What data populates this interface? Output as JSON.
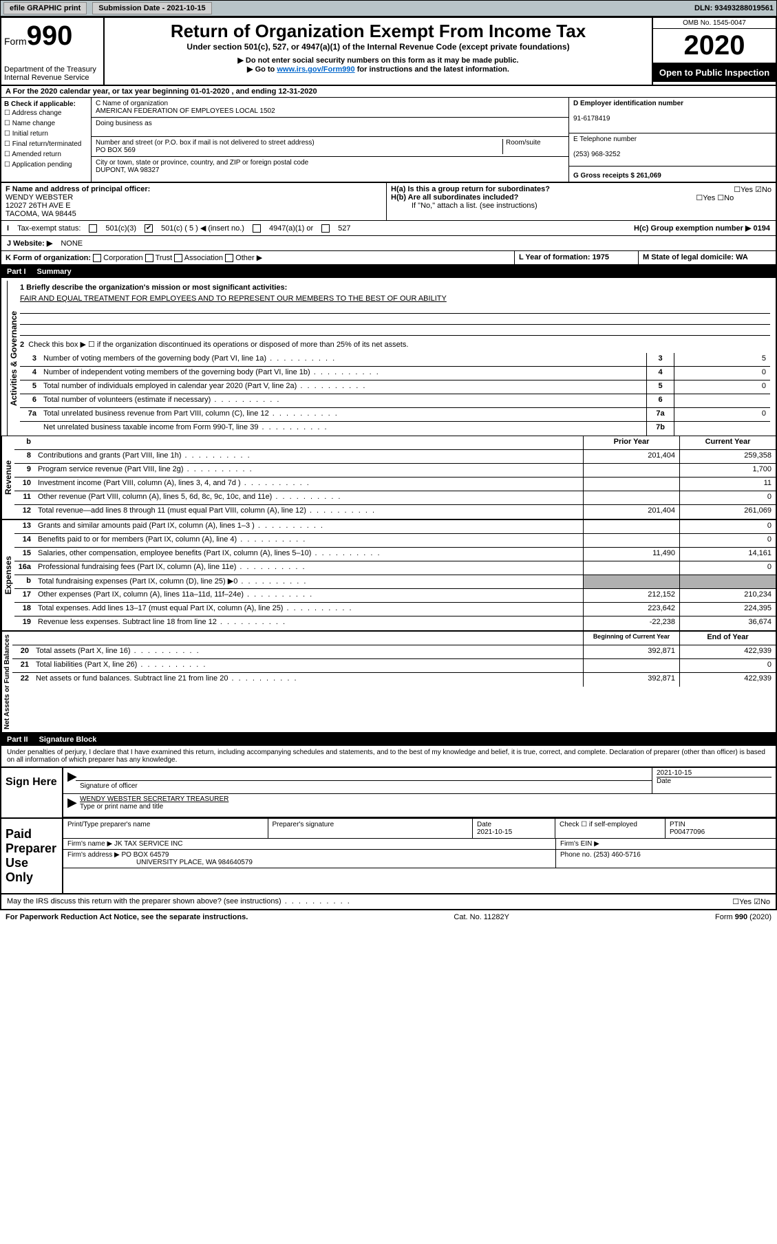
{
  "topbar": {
    "efile": "efile GRAPHIC print",
    "sub_label": "Submission Date - 2021-10-15",
    "dln": "DLN: 93493288019561"
  },
  "header": {
    "form_label": "Form",
    "form_num": "990",
    "dept": "Department of the Treasury\nInternal Revenue Service",
    "title": "Return of Organization Exempt From Income Tax",
    "subtitle": "Under section 501(c), 527, or 4947(a)(1) of the Internal Revenue Code (except private foundations)",
    "instr1": "▶ Do not enter social security numbers on this form as it may be made public.",
    "instr2_pre": "▶ Go to ",
    "instr2_link": "www.irs.gov/Form990",
    "instr2_post": " for instructions and the latest information.",
    "omb": "OMB No. 1545-0047",
    "year": "2020",
    "public": "Open to Public Inspection"
  },
  "section_a": "A For the 2020 calendar year, or tax year beginning 01-01-2020    , and ending 12-31-2020",
  "col_b": {
    "label": "B Check if applicable:",
    "opts": [
      "Address change",
      "Name change",
      "Initial return",
      "Final return/terminated",
      "Amended return",
      "Application pending"
    ]
  },
  "col_c": {
    "name_label": "C Name of organization",
    "name": "AMERICAN FEDERATION OF EMPLOYEES LOCAL 1502",
    "dba_label": "Doing business as",
    "addr_label": "Number and street (or P.O. box if mail is not delivered to street address)",
    "room_label": "Room/suite",
    "addr": "PO BOX 569",
    "city_label": "City or town, state or province, country, and ZIP or foreign postal code",
    "city": "DUPONT, WA  98327"
  },
  "col_d": {
    "ein_label": "D Employer identification number",
    "ein": "91-6178419",
    "tel_label": "E Telephone number",
    "tel": "(253) 968-3252",
    "gross_label": "G Gross receipts $ 261,069"
  },
  "officer": {
    "label": "F  Name and address of principal officer:",
    "name": "WENDY WEBSTER",
    "l1": "12027 26TH AVE E",
    "l2": "TACOMA, WA  98445"
  },
  "h_block": {
    "ha": "H(a)  Is this a group return for subordinates?",
    "hb": "H(b)  Are all subordinates included?",
    "hb_note": "If \"No,\" attach a list. (see instructions)",
    "hc": "H(c)  Group exemption number ▶   0194",
    "yes": "Yes",
    "no": "No"
  },
  "status": {
    "label": "Tax-exempt status:",
    "o1": "501(c)(3)",
    "o2": "501(c) ( 5 ) ◀ (insert no.)",
    "o3": "4947(a)(1) or",
    "o4": "527"
  },
  "website": {
    "label": "J   Website: ▶",
    "val": "NONE"
  },
  "row_k": {
    "k": "K Form of organization:",
    "corp": "Corporation",
    "trust": "Trust",
    "assoc": "Association",
    "other": "Other ▶",
    "l": "L Year of formation: 1975",
    "m": "M State of legal domicile: WA"
  },
  "part1": {
    "hdr": "Part I",
    "title": "Summary"
  },
  "mission": {
    "q": "1   Briefly describe the organization's mission or most significant activities:",
    "text": "FAIR AND EQUAL TREATMENT FOR EMPLOYEES AND TO REPRESENT OUR MEMBERS TO THE BEST OF OUR ABILITY"
  },
  "gov": {
    "label": "Activities & Governance",
    "r2": "Check this box ▶ ☐  if the organization discontinued its operations or disposed of more than 25% of its net assets.",
    "rows": [
      {
        "n": "3",
        "d": "Number of voting members of the governing body (Part VI, line 1a)",
        "c": "3",
        "v": "5"
      },
      {
        "n": "4",
        "d": "Number of independent voting members of the governing body (Part VI, line 1b)",
        "c": "4",
        "v": "0"
      },
      {
        "n": "5",
        "d": "Total number of individuals employed in calendar year 2020 (Part V, line 2a)",
        "c": "5",
        "v": "0"
      },
      {
        "n": "6",
        "d": "Total number of volunteers (estimate if necessary)",
        "c": "6",
        "v": ""
      },
      {
        "n": "7a",
        "d": "Total unrelated business revenue from Part VIII, column (C), line 12",
        "c": "7a",
        "v": "0"
      },
      {
        "n": "",
        "d": "Net unrelated business taxable income from Form 990-T, line 39",
        "c": "7b",
        "v": ""
      }
    ]
  },
  "rev": {
    "label": "Revenue",
    "head_b": "b",
    "hprior": "Prior Year",
    "hcurr": "Current Year",
    "rows": [
      {
        "n": "8",
        "d": "Contributions and grants (Part VIII, line 1h)",
        "p": "201,404",
        "c": "259,358"
      },
      {
        "n": "9",
        "d": "Program service revenue (Part VIII, line 2g)",
        "p": "",
        "c": "1,700"
      },
      {
        "n": "10",
        "d": "Investment income (Part VIII, column (A), lines 3, 4, and 7d )",
        "p": "",
        "c": "11"
      },
      {
        "n": "11",
        "d": "Other revenue (Part VIII, column (A), lines 5, 6d, 8c, 9c, 10c, and 11e)",
        "p": "",
        "c": "0"
      },
      {
        "n": "12",
        "d": "Total revenue—add lines 8 through 11 (must equal Part VIII, column (A), line 12)",
        "p": "201,404",
        "c": "261,069"
      }
    ]
  },
  "exp": {
    "label": "Expenses",
    "rows": [
      {
        "n": "13",
        "d": "Grants and similar amounts paid (Part IX, column (A), lines 1–3 )",
        "p": "",
        "c": "0"
      },
      {
        "n": "14",
        "d": "Benefits paid to or for members (Part IX, column (A), line 4)",
        "p": "",
        "c": "0"
      },
      {
        "n": "15",
        "d": "Salaries, other compensation, employee benefits (Part IX, column (A), lines 5–10)",
        "p": "11,490",
        "c": "14,161"
      },
      {
        "n": "16a",
        "d": "Professional fundraising fees (Part IX, column (A), line 11e)",
        "p": "",
        "c": "0"
      },
      {
        "n": "b",
        "d": "Total fundraising expenses (Part IX, column (D), line 25) ▶0",
        "p": "shade",
        "c": "shade"
      },
      {
        "n": "17",
        "d": "Other expenses (Part IX, column (A), lines 11a–11d, 11f–24e)",
        "p": "212,152",
        "c": "210,234"
      },
      {
        "n": "18",
        "d": "Total expenses. Add lines 13–17 (must equal Part IX, column (A), line 25)",
        "p": "223,642",
        "c": "224,395"
      },
      {
        "n": "19",
        "d": "Revenue less expenses. Subtract line 18 from line 12",
        "p": "-22,238",
        "c": "36,674"
      }
    ]
  },
  "net": {
    "label": "Net Assets or Fund Balances",
    "hbeg": "Beginning of Current Year",
    "hend": "End of Year",
    "rows": [
      {
        "n": "20",
        "d": "Total assets (Part X, line 16)",
        "p": "392,871",
        "c": "422,939"
      },
      {
        "n": "21",
        "d": "Total liabilities (Part X, line 26)",
        "p": "",
        "c": "0"
      },
      {
        "n": "22",
        "d": "Net assets or fund balances. Subtract line 21 from line 20",
        "p": "392,871",
        "c": "422,939"
      }
    ]
  },
  "part2": {
    "hdr": "Part II",
    "title": "Signature Block"
  },
  "penalty": "Under penalties of perjury, I declare that I have examined this return, including accompanying schedules and statements, and to the best of my knowledge and belief, it is true, correct, and complete. Declaration of preparer (other than officer) is based on all information of which preparer has any knowledge.",
  "sign": {
    "here": "Sign Here",
    "sig_label": "Signature of officer",
    "date": "2021-10-15",
    "date_label": "Date",
    "name": "WENDY WEBSTER  SECRETARY TREASURER",
    "name_label": "Type or print name and title"
  },
  "paid": {
    "label": "Paid Preparer Use Only",
    "h1": "Print/Type preparer's name",
    "h2": "Preparer's signature",
    "h3": "Date",
    "h3v": "2021-10-15",
    "h4": "Check ☐ if self-employed",
    "h5": "PTIN",
    "h5v": "P00477096",
    "firm_name_l": "Firm's name    ▶",
    "firm_name": "JK TAX SERVICE INC",
    "firm_ein_l": "Firm's EIN ▶",
    "firm_addr_l": "Firm's address ▶",
    "firm_addr": "PO BOX 64579",
    "firm_city": "UNIVERSITY PLACE, WA  984640579",
    "phone_l": "Phone no. (253) 460-5716"
  },
  "discuss": "May the IRS discuss this return with the preparer shown above? (see instructions)",
  "footer": {
    "l": "For Paperwork Reduction Act Notice, see the separate instructions.",
    "m": "Cat. No. 11282Y",
    "r": "Form 990 (2020)"
  }
}
